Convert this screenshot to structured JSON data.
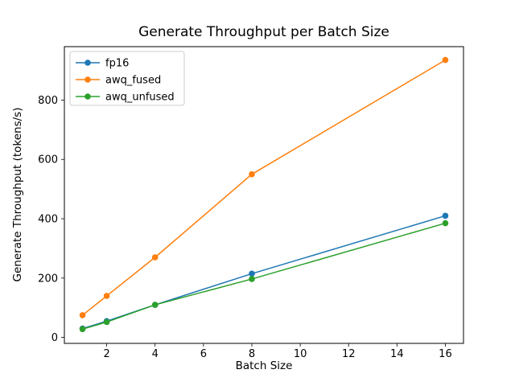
{
  "chart_data": {
    "type": "line",
    "title": "Generate Throughput per Batch Size",
    "xlabel": "Batch Size",
    "ylabel": "Generate Throughput (tokens/s)",
    "x": [
      1,
      2,
      4,
      8,
      16
    ],
    "series": [
      {
        "name": "fp16",
        "color": "#1f77b4",
        "values": [
          30,
          55,
          110,
          215,
          410
        ]
      },
      {
        "name": "awq_fused",
        "color": "#ff7f0e",
        "values": [
          75,
          140,
          270,
          550,
          935
        ]
      },
      {
        "name": "awq_unfused",
        "color": "#2ca02c",
        "values": [
          28,
          52,
          110,
          197,
          385
        ]
      }
    ],
    "xlim": [
      0.25,
      16.75
    ],
    "ylim": [
      -20,
      980
    ],
    "xticks": [
      2,
      4,
      6,
      8,
      10,
      12,
      14,
      16
    ],
    "yticks": [
      0,
      200,
      400,
      600,
      800
    ],
    "legend_position": "upper left",
    "grid": false,
    "axis_color": "#000000",
    "legend_edge_color": "#cccccc",
    "background": "#ffffff"
  }
}
